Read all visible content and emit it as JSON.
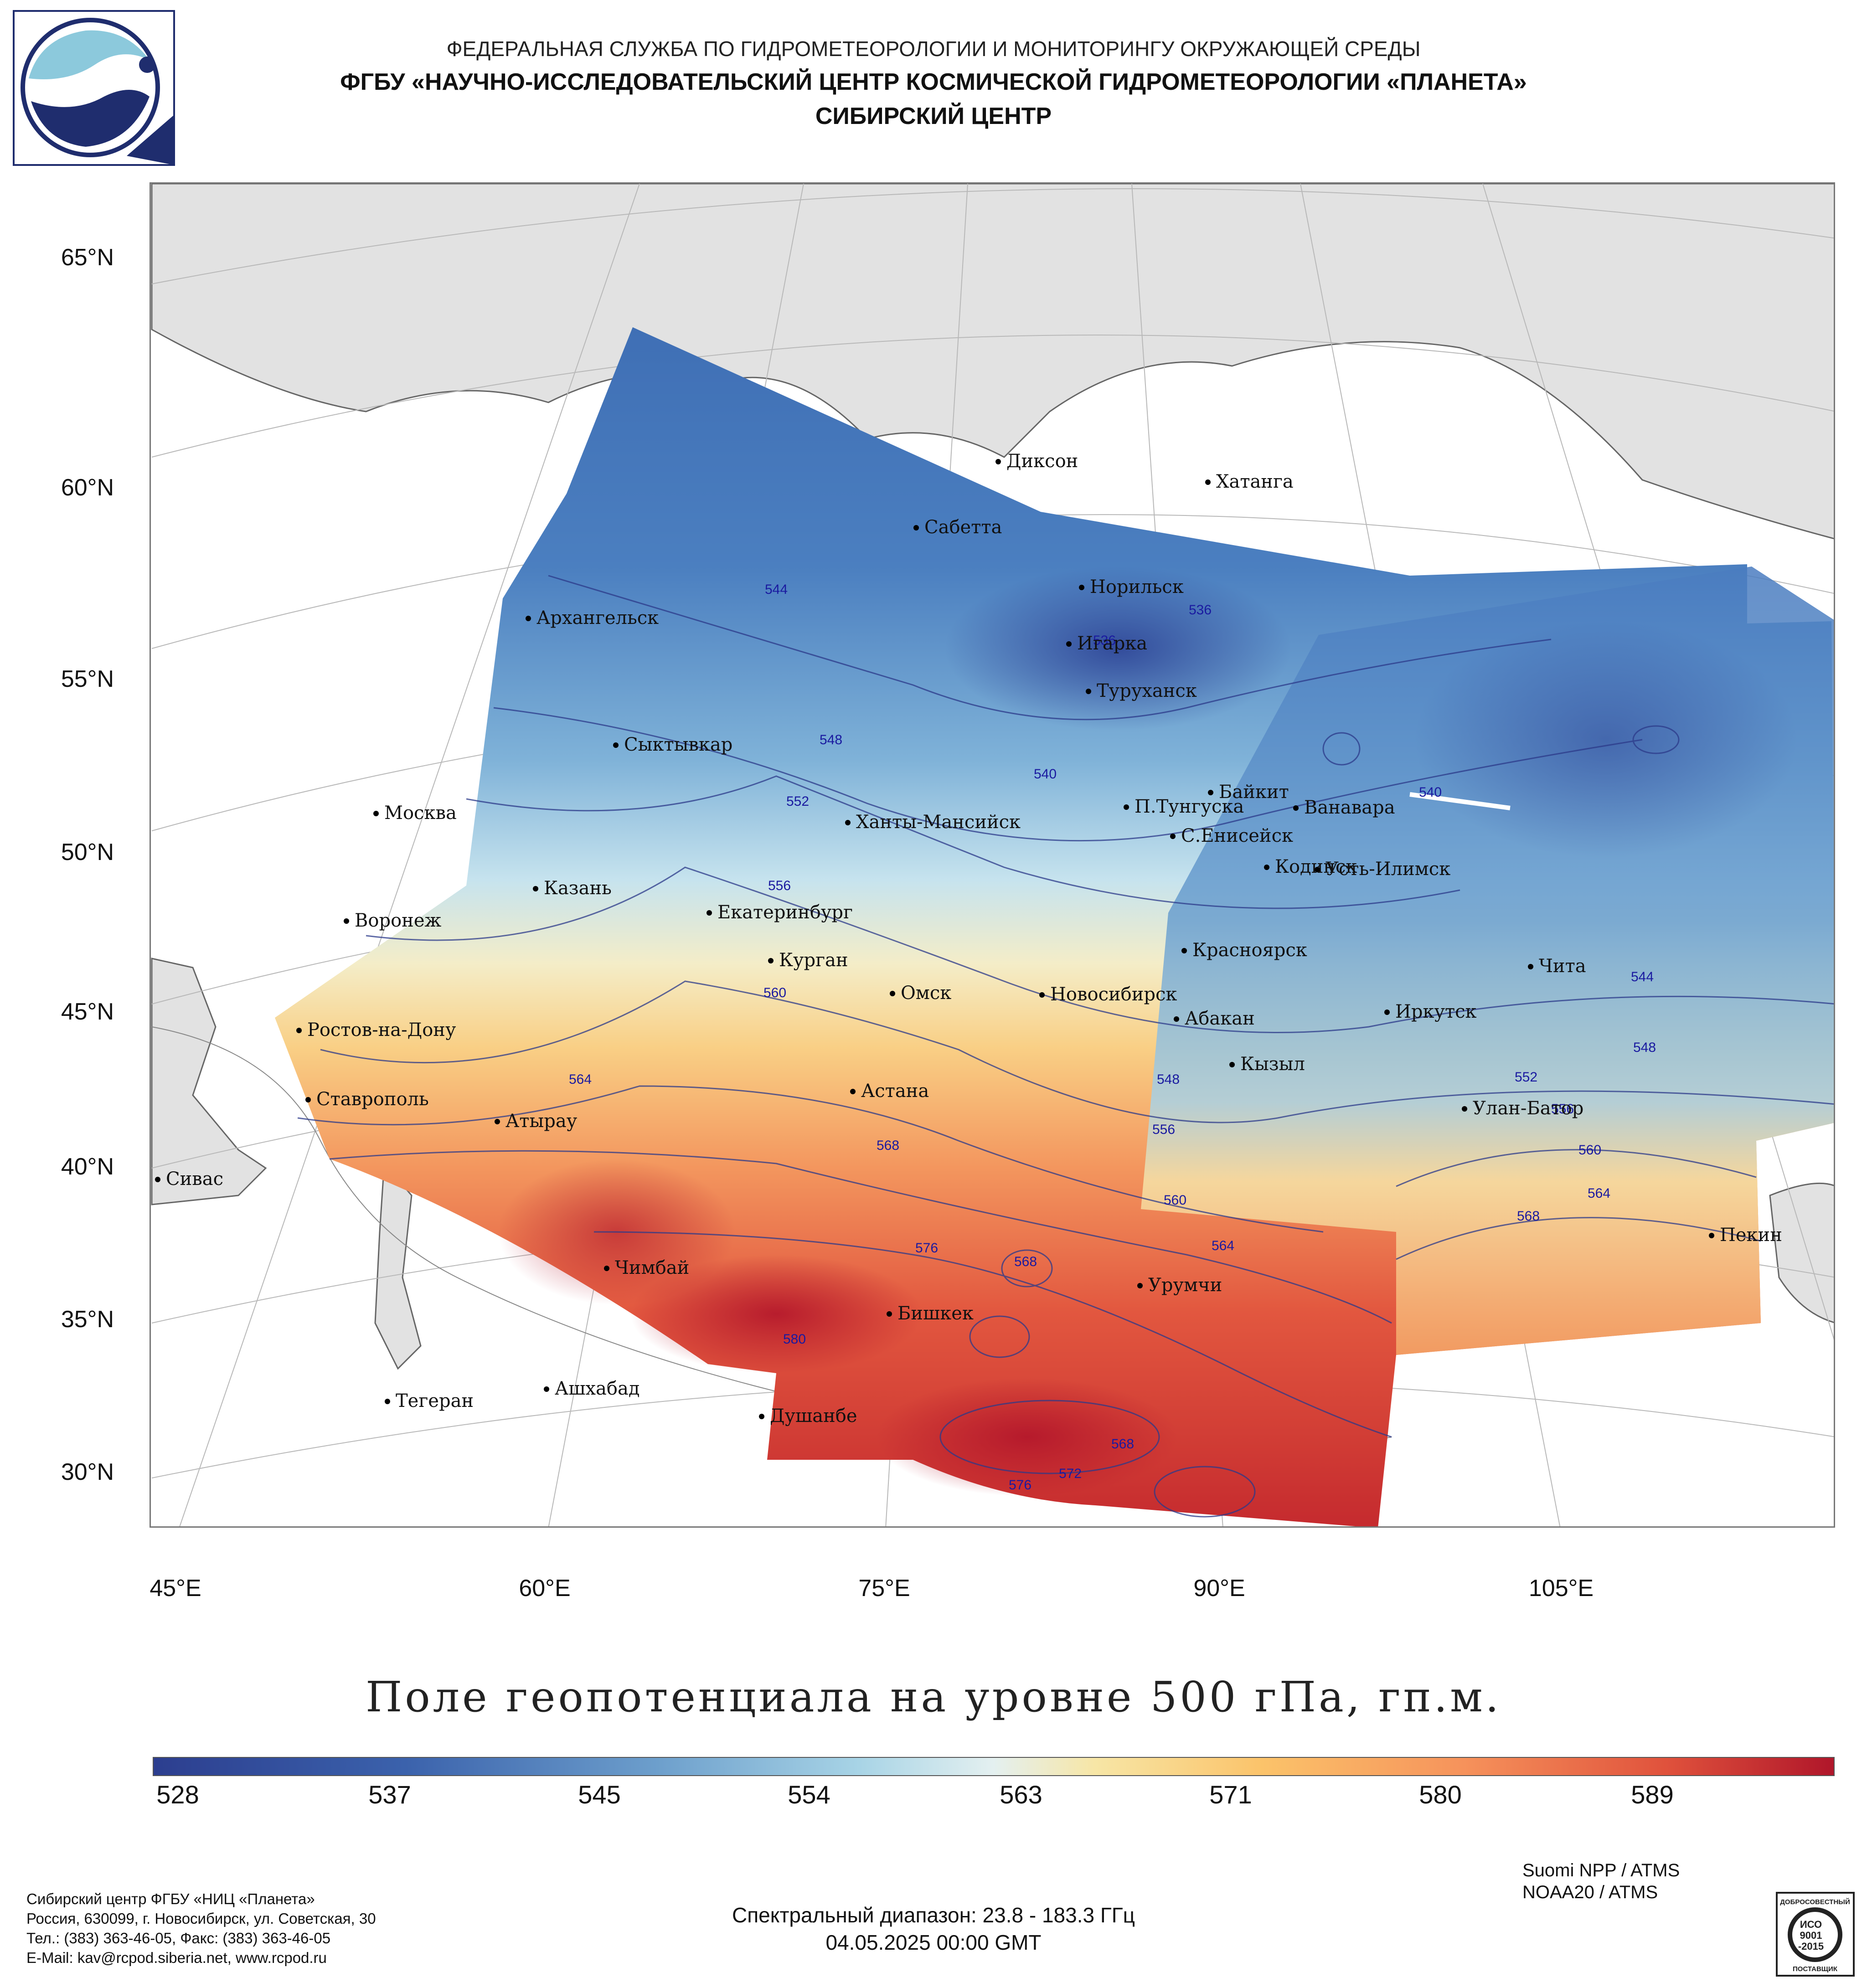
{
  "header": {
    "line1": "ФЕДЕРАЛЬНАЯ СЛУЖБА ПО ГИДРОМЕТЕОРОЛОГИИ И МОНИТОРИНГУ ОКРУЖАЮЩЕЙ СРЕДЫ",
    "line2": "ФГБУ «НАУЧНО-ИССЛЕДОВАТЕЛЬСКИЙ ЦЕНТР КОСМИЧЕСКОЙ ГИДРОМЕТЕОРОЛОГИИ «ПЛАНЕТА»",
    "line3": "СИБИРСКИЙ ЦЕНТР"
  },
  "map": {
    "lat_labels": [
      "65°N",
      "60°N",
      "55°N",
      "50°N",
      "45°N",
      "40°N",
      "35°N",
      "30°N"
    ],
    "lon_labels": [
      "45°E",
      "60°E",
      "75°E",
      "90°E",
      "105°E"
    ],
    "cities": [
      "Диксон",
      "Хатанга",
      "Сабетта",
      "Норильск",
      "Игарка",
      "Туруханск",
      "Архангельск",
      "Сыктывкар",
      "Байкит",
      "П.Тунгуска",
      "Ванавара",
      "Москва",
      "Ханты-Мансийск",
      "С.Енисейск",
      "Кодинск",
      "Усть-Илимск",
      "Казань",
      "Екатеринбург",
      "Воронеж",
      "Красноярск",
      "Курган",
      "Чита",
      "Омск",
      "Новосибирск",
      "Ростов-на-Дону",
      "Абакан",
      "Иркутск",
      "Кызыл",
      "Астана",
      "Ставрополь",
      "Улан-Батор",
      "Атырау",
      "Сивас",
      "Пекин",
      "Чимбай",
      "Урумчи",
      "Бишкек",
      "Ашхабад",
      "Тегеран",
      "Душанбе"
    ],
    "isoline_labels": [
      "544",
      "536",
      "536",
      "548",
      "552",
      "540",
      "540",
      "556",
      "560",
      "564",
      "568",
      "576",
      "568",
      "580",
      "548",
      "556",
      "560",
      "564",
      "552",
      "556",
      "560",
      "564",
      "568",
      "548",
      "544",
      "568",
      "572",
      "576"
    ]
  },
  "title": "Поле геопотенциала на уровне 500 гПа, гп.м.",
  "colorbar": {
    "ticks": [
      "528",
      "537",
      "545",
      "554",
      "563",
      "571",
      "580",
      "589"
    ],
    "colors": [
      "#2c3e8f",
      "#3b62ac",
      "#6d9fcc",
      "#a8d4e6",
      "#e4f0f0",
      "#f7e6a6",
      "#fbc36a",
      "#f6925b",
      "#e0523c",
      "#b0162a"
    ]
  },
  "footer": {
    "satellites": [
      "Suomi NPP / ATMS",
      "NOAA20 / ATMS"
    ],
    "spectral": "Спектральный диапазон: 23.8 - 183.3 ГГц",
    "datetime": "04.05.2025 00:00 GMT",
    "address": [
      "Сибирский центр ФГБУ «НИЦ «Планета»",
      "Россия, 630099, г. Новосибирск, ул. Советская, 30",
      "Тел.: (383) 363-46-05, Факс: (383) 363-46-05",
      "E-Mail: kav@rcpod.siberia.net, www.rcpod.ru"
    ],
    "iso_badge": [
      "ДОБРОСОВЕСТНЫЙ",
      "ИСО",
      "9001",
      "-2015",
      "ПОСТАВЩИК"
    ]
  }
}
